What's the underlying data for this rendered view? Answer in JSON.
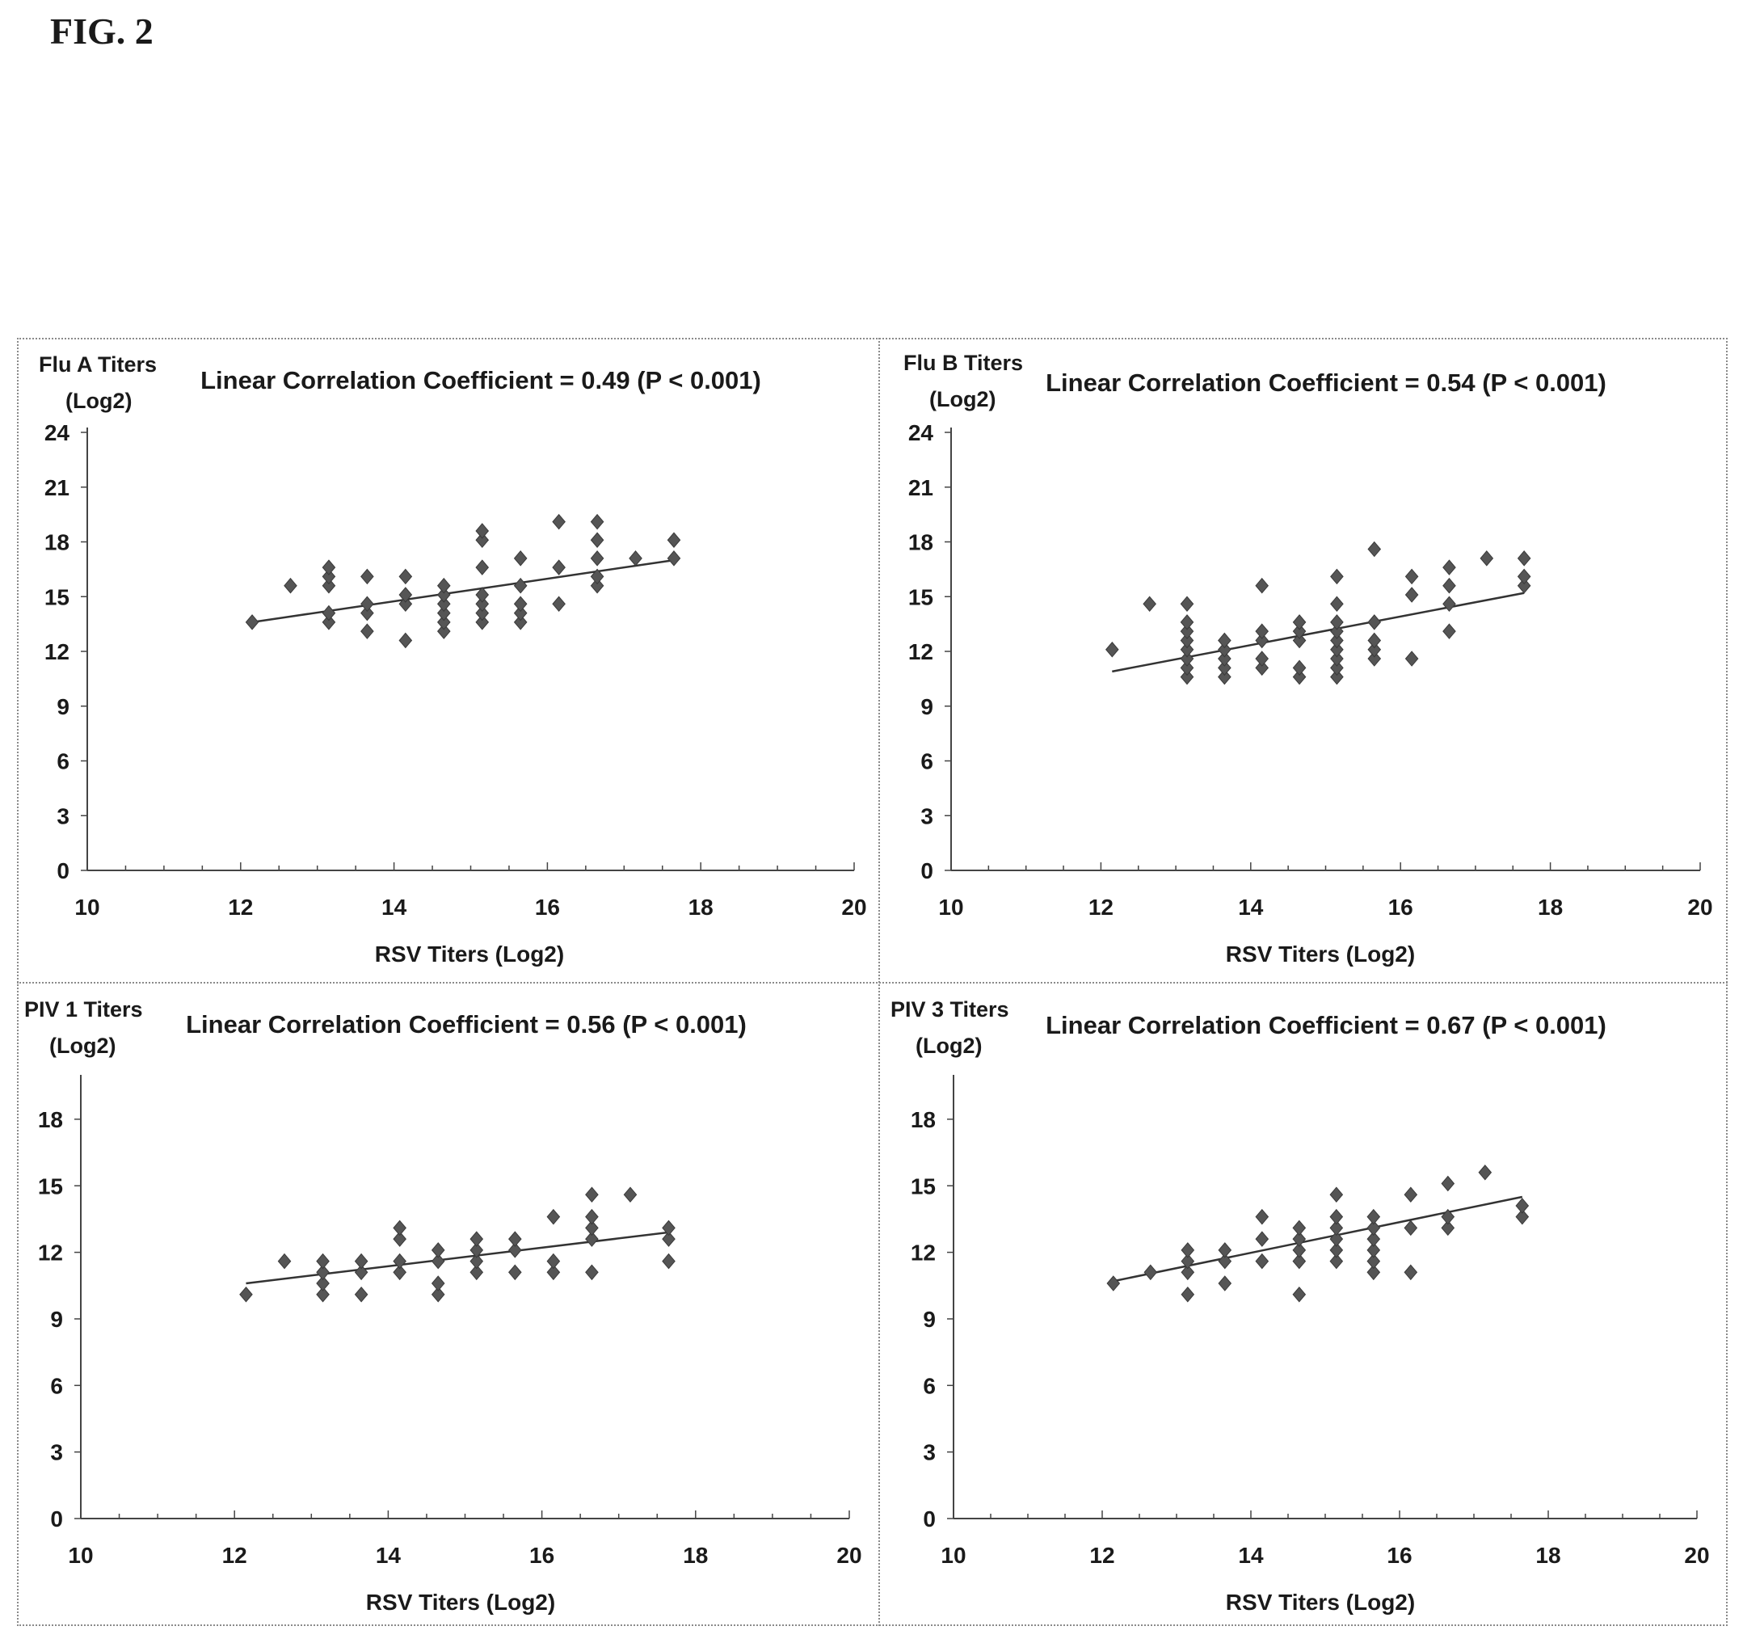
{
  "figure_label": "FIG. 2",
  "chart_data": [
    {
      "type": "scatter",
      "title": "Linear Correlation Coefficient = 0.49 (P < 0.001)",
      "ylabel": [
        "Flu A Titers",
        "(Log2)"
      ],
      "xlabel": "RSV Titers (Log2)",
      "xlim": [
        10,
        20
      ],
      "ylim": [
        0,
        24
      ],
      "xticks": [
        "10",
        "12",
        "14",
        "16",
        "18",
        "20"
      ],
      "yticks": [
        "0",
        "3",
        "6",
        "9",
        "12",
        "15",
        "18",
        "21",
        "24"
      ],
      "grid": false,
      "marker_color": "#555555",
      "points": [
        [
          12.15,
          13.6
        ],
        [
          12.65,
          15.6
        ],
        [
          13.15,
          13.6
        ],
        [
          13.15,
          14.1
        ],
        [
          13.15,
          15.6
        ],
        [
          13.15,
          16.1
        ],
        [
          13.15,
          16.6
        ],
        [
          13.65,
          13.1
        ],
        [
          13.65,
          14.1
        ],
        [
          13.65,
          14.6
        ],
        [
          13.65,
          16.1
        ],
        [
          14.15,
          12.6
        ],
        [
          14.15,
          14.6
        ],
        [
          14.15,
          15.1
        ],
        [
          14.15,
          16.1
        ],
        [
          14.65,
          13.1
        ],
        [
          14.65,
          13.6
        ],
        [
          14.65,
          14.1
        ],
        [
          14.65,
          14.6
        ],
        [
          14.65,
          15.1
        ],
        [
          14.65,
          15.6
        ],
        [
          15.15,
          13.6
        ],
        [
          15.15,
          14.1
        ],
        [
          15.15,
          14.6
        ],
        [
          15.15,
          15.1
        ],
        [
          15.15,
          16.6
        ],
        [
          15.15,
          18.1
        ],
        [
          15.15,
          18.6
        ],
        [
          15.65,
          13.6
        ],
        [
          15.65,
          14.1
        ],
        [
          15.65,
          14.6
        ],
        [
          15.65,
          15.6
        ],
        [
          15.65,
          17.1
        ],
        [
          16.15,
          14.6
        ],
        [
          16.15,
          16.6
        ],
        [
          16.15,
          19.1
        ],
        [
          16.65,
          15.6
        ],
        [
          16.65,
          16.1
        ],
        [
          16.65,
          17.1
        ],
        [
          16.65,
          18.1
        ],
        [
          16.65,
          19.1
        ],
        [
          17.15,
          17.1
        ],
        [
          17.65,
          17.1
        ],
        [
          17.65,
          18.1
        ]
      ],
      "trendline": [
        [
          12.15,
          13.6
        ],
        [
          17.65,
          17.0
        ]
      ]
    },
    {
      "type": "scatter",
      "title": "Linear Correlation Coefficient = 0.54 (P < 0.001)",
      "ylabel": [
        "Flu B Titers",
        "(Log2)"
      ],
      "xlabel": "RSV Titers (Log2)",
      "xlim": [
        10,
        20
      ],
      "ylim": [
        0,
        24
      ],
      "xticks": [
        "10",
        "12",
        "14",
        "16",
        "18",
        "20"
      ],
      "yticks": [
        "0",
        "3",
        "6",
        "9",
        "12",
        "15",
        "18",
        "21",
        "24"
      ],
      "grid": false,
      "marker_color": "#555555",
      "points": [
        [
          12.15,
          12.1
        ],
        [
          12.65,
          14.6
        ],
        [
          13.15,
          10.6
        ],
        [
          13.15,
          11.1
        ],
        [
          13.15,
          11.6
        ],
        [
          13.15,
          12.1
        ],
        [
          13.15,
          12.6
        ],
        [
          13.15,
          13.1
        ],
        [
          13.15,
          13.6
        ],
        [
          13.15,
          14.6
        ],
        [
          13.65,
          10.6
        ],
        [
          13.65,
          11.1
        ],
        [
          13.65,
          11.6
        ],
        [
          13.65,
          12.1
        ],
        [
          13.65,
          12.6
        ],
        [
          14.15,
          11.1
        ],
        [
          14.15,
          11.6
        ],
        [
          14.15,
          12.6
        ],
        [
          14.15,
          13.1
        ],
        [
          14.15,
          15.6
        ],
        [
          14.65,
          10.6
        ],
        [
          14.65,
          11.1
        ],
        [
          14.65,
          12.6
        ],
        [
          14.65,
          13.1
        ],
        [
          14.65,
          13.6
        ],
        [
          15.15,
          10.6
        ],
        [
          15.15,
          11.1
        ],
        [
          15.15,
          11.6
        ],
        [
          15.15,
          12.1
        ],
        [
          15.15,
          12.6
        ],
        [
          15.15,
          13.1
        ],
        [
          15.15,
          13.6
        ],
        [
          15.15,
          14.6
        ],
        [
          15.15,
          16.1
        ],
        [
          15.65,
          11.6
        ],
        [
          15.65,
          12.1
        ],
        [
          15.65,
          12.6
        ],
        [
          15.65,
          13.6
        ],
        [
          15.65,
          17.6
        ],
        [
          16.15,
          11.6
        ],
        [
          16.15,
          15.1
        ],
        [
          16.15,
          16.1
        ],
        [
          16.65,
          13.1
        ],
        [
          16.65,
          14.6
        ],
        [
          16.65,
          15.6
        ],
        [
          16.65,
          16.6
        ],
        [
          17.15,
          17.1
        ],
        [
          17.65,
          15.6
        ],
        [
          17.65,
          16.1
        ],
        [
          17.65,
          17.1
        ]
      ],
      "trendline": [
        [
          12.15,
          10.9
        ],
        [
          17.65,
          15.2
        ]
      ]
    },
    {
      "type": "scatter",
      "title": "Linear Correlation Coefficient = 0.56 (P < 0.001)",
      "ylabel": [
        "PIV 1 Titers",
        "(Log2)"
      ],
      "xlabel": "RSV Titers (Log2)",
      "xlim": [
        10,
        20
      ],
      "ylim": [
        0,
        18
      ],
      "ymax_axis": 20,
      "xticks": [
        "10",
        "12",
        "14",
        "16",
        "18",
        "20"
      ],
      "yticks": [
        "0",
        "3",
        "6",
        "9",
        "12",
        "15",
        "18"
      ],
      "grid": false,
      "marker_color": "#555555",
      "points": [
        [
          12.15,
          10.1
        ],
        [
          12.65,
          11.6
        ],
        [
          13.15,
          10.1
        ],
        [
          13.15,
          10.6
        ],
        [
          13.15,
          11.1
        ],
        [
          13.15,
          11.6
        ],
        [
          13.65,
          10.1
        ],
        [
          13.65,
          11.1
        ],
        [
          13.65,
          11.6
        ],
        [
          14.15,
          11.1
        ],
        [
          14.15,
          11.6
        ],
        [
          14.15,
          12.6
        ],
        [
          14.15,
          13.1
        ],
        [
          14.65,
          10.1
        ],
        [
          14.65,
          10.6
        ],
        [
          14.65,
          11.6
        ],
        [
          14.65,
          12.1
        ],
        [
          15.15,
          11.1
        ],
        [
          15.15,
          11.6
        ],
        [
          15.15,
          12.1
        ],
        [
          15.15,
          12.6
        ],
        [
          15.65,
          11.1
        ],
        [
          15.65,
          12.1
        ],
        [
          15.65,
          12.6
        ],
        [
          16.15,
          11.1
        ],
        [
          16.15,
          11.6
        ],
        [
          16.15,
          13.6
        ],
        [
          16.65,
          11.1
        ],
        [
          16.65,
          12.6
        ],
        [
          16.65,
          13.1
        ],
        [
          16.65,
          13.6
        ],
        [
          16.65,
          14.6
        ],
        [
          17.15,
          14.6
        ],
        [
          17.65,
          11.6
        ],
        [
          17.65,
          12.6
        ],
        [
          17.65,
          13.1
        ]
      ],
      "trendline": [
        [
          12.15,
          10.6
        ],
        [
          17.65,
          12.9
        ]
      ]
    },
    {
      "type": "scatter",
      "title": "Linear Correlation Coefficient = 0.67 (P < 0.001)",
      "ylabel": [
        "PIV 3 Titers",
        "(Log2)"
      ],
      "xlabel": "RSV Titers (Log2)",
      "xlim": [
        10,
        20
      ],
      "ylim": [
        0,
        18
      ],
      "ymax_axis": 20,
      "xticks": [
        "10",
        "12",
        "14",
        "16",
        "18",
        "20"
      ],
      "yticks": [
        "0",
        "3",
        "6",
        "9",
        "12",
        "15",
        "18"
      ],
      "grid": false,
      "marker_color": "#555555",
      "points": [
        [
          12.15,
          10.6
        ],
        [
          12.65,
          11.1
        ],
        [
          13.15,
          10.1
        ],
        [
          13.15,
          11.1
        ],
        [
          13.15,
          11.6
        ],
        [
          13.15,
          12.1
        ],
        [
          13.65,
          10.6
        ],
        [
          13.65,
          11.6
        ],
        [
          13.65,
          12.1
        ],
        [
          14.15,
          11.6
        ],
        [
          14.15,
          12.6
        ],
        [
          14.15,
          13.6
        ],
        [
          14.65,
          10.1
        ],
        [
          14.65,
          11.6
        ],
        [
          14.65,
          12.1
        ],
        [
          14.65,
          12.6
        ],
        [
          14.65,
          13.1
        ],
        [
          15.15,
          11.6
        ],
        [
          15.15,
          12.1
        ],
        [
          15.15,
          12.6
        ],
        [
          15.15,
          13.1
        ],
        [
          15.15,
          13.6
        ],
        [
          15.15,
          14.6
        ],
        [
          15.65,
          11.1
        ],
        [
          15.65,
          11.6
        ],
        [
          15.65,
          12.1
        ],
        [
          15.65,
          12.6
        ],
        [
          15.65,
          13.1
        ],
        [
          15.65,
          13.6
        ],
        [
          16.15,
          11.1
        ],
        [
          16.15,
          13.1
        ],
        [
          16.15,
          14.6
        ],
        [
          16.65,
          13.1
        ],
        [
          16.65,
          13.6
        ],
        [
          16.65,
          15.1
        ],
        [
          17.15,
          15.6
        ],
        [
          17.65,
          13.6
        ],
        [
          17.65,
          14.1
        ]
      ],
      "trendline": [
        [
          12.15,
          10.7
        ],
        [
          17.65,
          14.5
        ]
      ]
    }
  ]
}
